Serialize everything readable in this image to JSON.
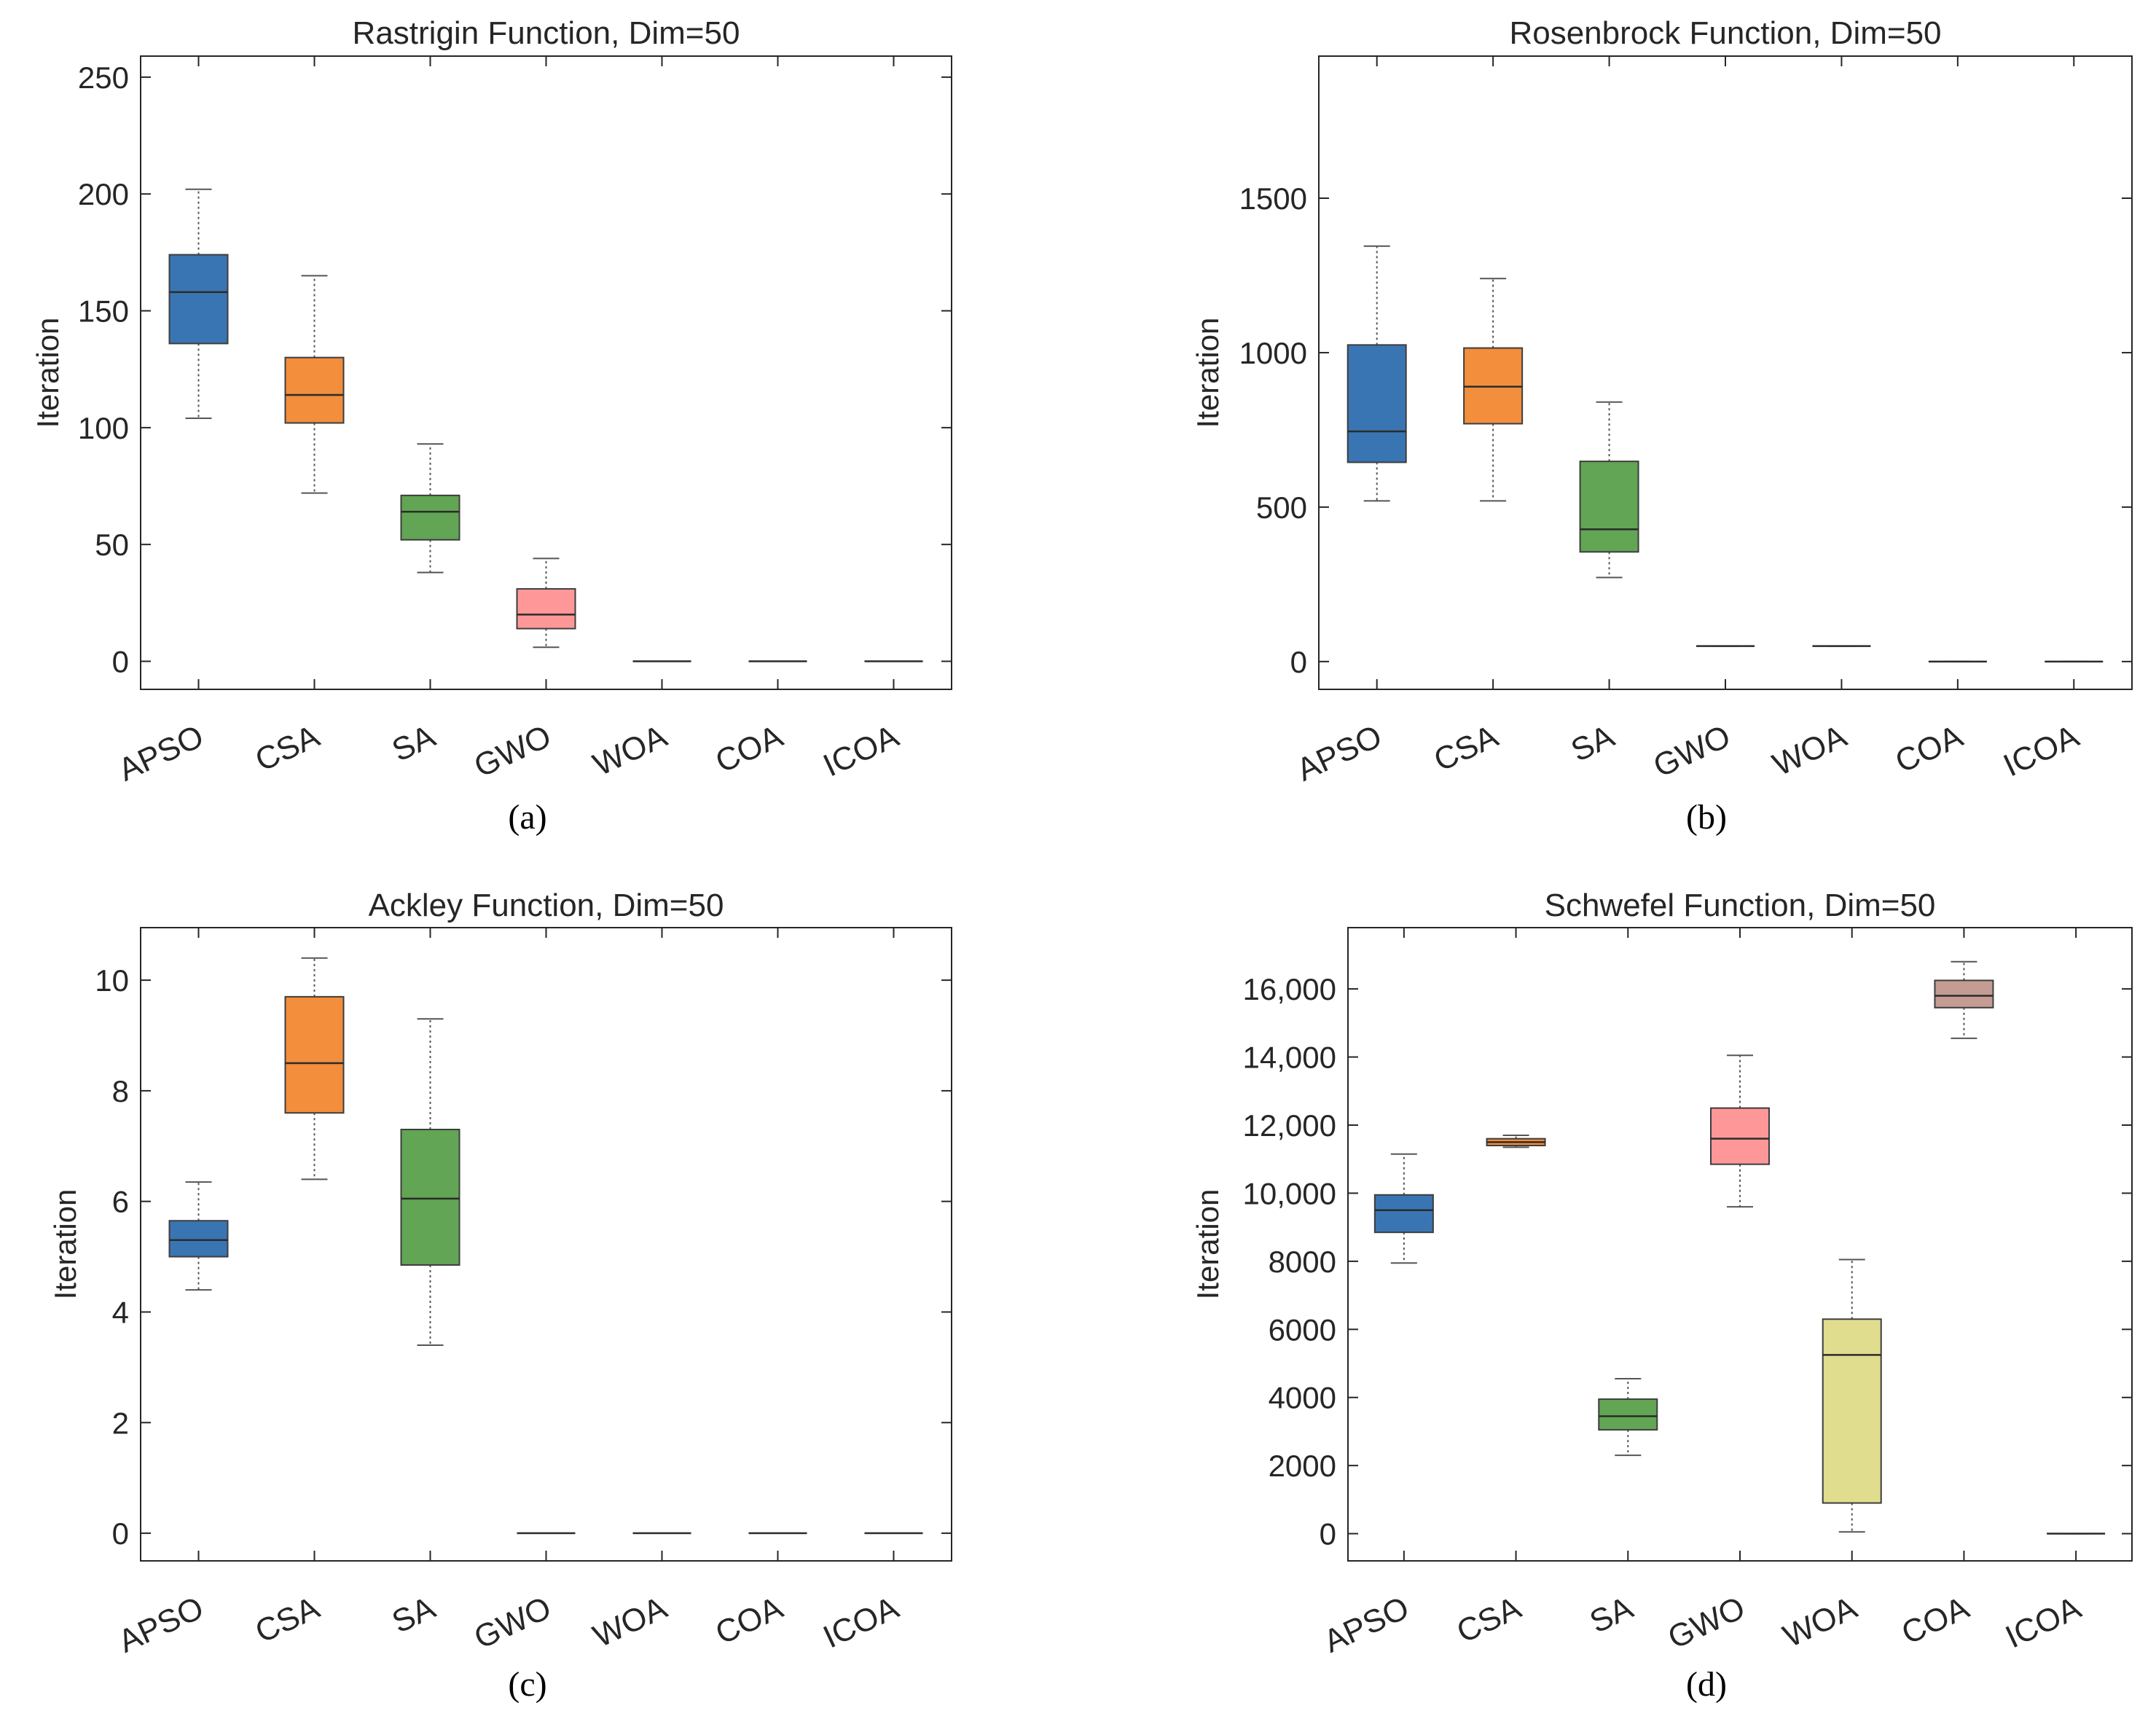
{
  "chart_data": [
    {
      "type": "box",
      "title": "Rastrigin Function, Dim=50",
      "ylabel": "Iteration",
      "caption": "(a)",
      "categories": [
        "APSO",
        "CSA",
        "SA",
        "GWO",
        "WOA",
        "COA",
        "ICOA"
      ],
      "ylim": [
        -12,
        259
      ],
      "yticks": [
        0,
        50,
        100,
        150,
        200,
        250
      ],
      "ytick_labels": [
        "0",
        "50",
        "100",
        "150",
        "200",
        "250"
      ],
      "boxes": [
        {
          "min": 104,
          "q1": 136,
          "median": 158,
          "q3": 174,
          "max": 202,
          "color": "#3a75b3"
        },
        {
          "min": 72,
          "q1": 102,
          "median": 114,
          "q3": 130,
          "max": 165,
          "color": "#f28e3c"
        },
        {
          "min": 38,
          "q1": 52,
          "median": 64,
          "q3": 71,
          "max": 93,
          "color": "#62a554"
        },
        {
          "min": 6,
          "q1": 14,
          "median": 20,
          "q3": 31,
          "max": 44,
          "color": "#fe9898"
        },
        {
          "min": 0,
          "q1": 0,
          "median": 0,
          "q3": 0,
          "max": 0,
          "color": "#e1dd8f"
        },
        {
          "min": 0,
          "q1": 0,
          "median": 0,
          "q3": 0,
          "max": 0,
          "color": "#c49c94"
        },
        {
          "min": 0,
          "q1": 0,
          "median": 0,
          "q3": 0,
          "max": 0,
          "color": "#c49c94"
        }
      ]
    },
    {
      "type": "box",
      "title": "Rosenbrock Function, Dim=50",
      "ylabel": "Iteration",
      "caption": "(b)",
      "categories": [
        "APSO",
        "CSA",
        "SA",
        "GWO",
        "WOA",
        "COA",
        "ICOA"
      ],
      "ylim": [
        -90,
        1960
      ],
      "yticks": [
        0,
        500,
        1000,
        1500
      ],
      "ytick_labels": [
        "0",
        "500",
        "1000",
        "1500"
      ],
      "boxes": [
        {
          "min": 520,
          "q1": 645,
          "median": 745,
          "q3": 1025,
          "max": 1345,
          "color": "#3a75b3"
        },
        {
          "min": 520,
          "q1": 770,
          "median": 890,
          "q3": 1015,
          "max": 1240,
          "color": "#f28e3c"
        },
        {
          "min": 272,
          "q1": 355,
          "median": 428,
          "q3": 648,
          "max": 840,
          "color": "#62a554"
        },
        {
          "min": 50,
          "q1": 50,
          "median": 50,
          "q3": 50,
          "max": 50,
          "color": "#fe9898"
        },
        {
          "min": 50,
          "q1": 50,
          "median": 50,
          "q3": 50,
          "max": 50,
          "color": "#e1dd8f"
        },
        {
          "min": 0,
          "q1": 0,
          "median": 0,
          "q3": 0,
          "max": 0,
          "color": "#c49c94"
        },
        {
          "min": 0,
          "q1": 0,
          "median": 0,
          "q3": 0,
          "max": 0,
          "color": "#c49c94"
        }
      ]
    },
    {
      "type": "box",
      "title": "Ackley Function, Dim=50",
      "ylabel": "Iteration",
      "caption": "(c)",
      "categories": [
        "APSO",
        "CSA",
        "SA",
        "GWO",
        "WOA",
        "COA",
        "ICOA"
      ],
      "ylim": [
        -0.5,
        10.95
      ],
      "yticks": [
        0,
        2,
        4,
        6,
        8,
        10
      ],
      "ytick_labels": [
        "0",
        "2",
        "4",
        "6",
        "8",
        "10"
      ],
      "boxes": [
        {
          "min": 4.4,
          "q1": 5.0,
          "median": 5.3,
          "q3": 5.65,
          "max": 6.35,
          "color": "#3a75b3"
        },
        {
          "min": 6.4,
          "q1": 7.6,
          "median": 8.5,
          "q3": 9.7,
          "max": 10.4,
          "color": "#f28e3c"
        },
        {
          "min": 3.4,
          "q1": 4.85,
          "median": 6.05,
          "q3": 7.3,
          "max": 9.3,
          "color": "#62a554"
        },
        {
          "min": 0,
          "q1": 0,
          "median": 0,
          "q3": 0,
          "max": 0,
          "color": "#fe9898"
        },
        {
          "min": 0,
          "q1": 0,
          "median": 0,
          "q3": 0,
          "max": 0,
          "color": "#e1dd8f"
        },
        {
          "min": 0,
          "q1": 0,
          "median": 0,
          "q3": 0,
          "max": 0,
          "color": "#c49c94"
        },
        {
          "min": 0,
          "q1": 0,
          "median": 0,
          "q3": 0,
          "max": 0,
          "color": "#c49c94"
        }
      ]
    },
    {
      "type": "box",
      "title": "Schwefel Function, Dim=50",
      "ylabel": "Iteration",
      "caption": "(d)",
      "categories": [
        "APSO",
        "CSA",
        "SA",
        "GWO",
        "WOA",
        "COA",
        "ICOA"
      ],
      "ylim": [
        -800,
        17800
      ],
      "yticks": [
        0,
        2000,
        4000,
        6000,
        8000,
        10000,
        12000,
        14000,
        16000
      ],
      "ytick_labels": [
        "0",
        "2000",
        "4000",
        "6000",
        "8000",
        "10,000",
        "12,000",
        "14,000",
        "16,000"
      ],
      "boxes": [
        {
          "min": 7950,
          "q1": 8850,
          "median": 9500,
          "q3": 9950,
          "max": 11150,
          "color": "#3a75b3"
        },
        {
          "min": 11350,
          "q1": 11400,
          "median": 11500,
          "q3": 11600,
          "max": 11700,
          "color": "#f28e3c"
        },
        {
          "min": 2300,
          "q1": 3050,
          "median": 3450,
          "q3": 3950,
          "max": 4550,
          "color": "#62a554"
        },
        {
          "min": 9600,
          "q1": 10850,
          "median": 11600,
          "q3": 12500,
          "max": 14050,
          "color": "#fe9898"
        },
        {
          "min": 50,
          "q1": 900,
          "median": 5250,
          "q3": 6300,
          "max": 8050,
          "color": "#e1dd8f"
        },
        {
          "min": 14550,
          "q1": 15450,
          "median": 15800,
          "q3": 16250,
          "max": 16800,
          "color": "#c49c94"
        },
        {
          "min": 0,
          "q1": 0,
          "median": 0,
          "q3": 0,
          "max": 0,
          "color": "#c49c94"
        }
      ]
    }
  ]
}
